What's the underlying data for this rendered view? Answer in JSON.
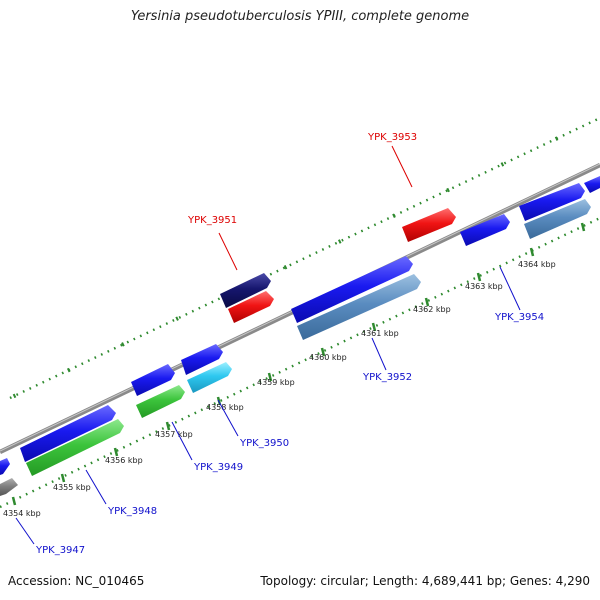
{
  "title": "Yersinia pseudotuberculosis YPIII, complete genome",
  "footer": {
    "accession": "Accession: NC_010465",
    "stats": "Topology: circular; Length: 4,689,441 bp; Genes: 4,290"
  },
  "colors": {
    "backbone": "#8a8a8a",
    "tick": "#2f8a2f",
    "label_red": "#dd0000",
    "label_blue": "#1111cc"
  },
  "scale_labels": [
    "4354 kbp",
    "4355 kbp",
    "4356 kbp",
    "4357 kbp",
    "4358 kbp",
    "4359 kbp",
    "4360 kbp",
    "4361 kbp",
    "4362 kbp",
    "4363 kbp",
    "4364 kbp"
  ],
  "gene_labels": [
    {
      "text": "YPK_3947",
      "color": "#1111cc"
    },
    {
      "text": "YPK_3948",
      "color": "#1111cc"
    },
    {
      "text": "YPK_3949",
      "color": "#1111cc"
    },
    {
      "text": "YPK_3950",
      "color": "#1111cc"
    },
    {
      "text": "YPK_3951",
      "color": "#dd0000"
    },
    {
      "text": "YPK_3952",
      "color": "#1111cc"
    },
    {
      "text": "YPK_3953",
      "color": "#dd0000"
    },
    {
      "text": "YPK_3954",
      "color": "#1111cc"
    }
  ]
}
